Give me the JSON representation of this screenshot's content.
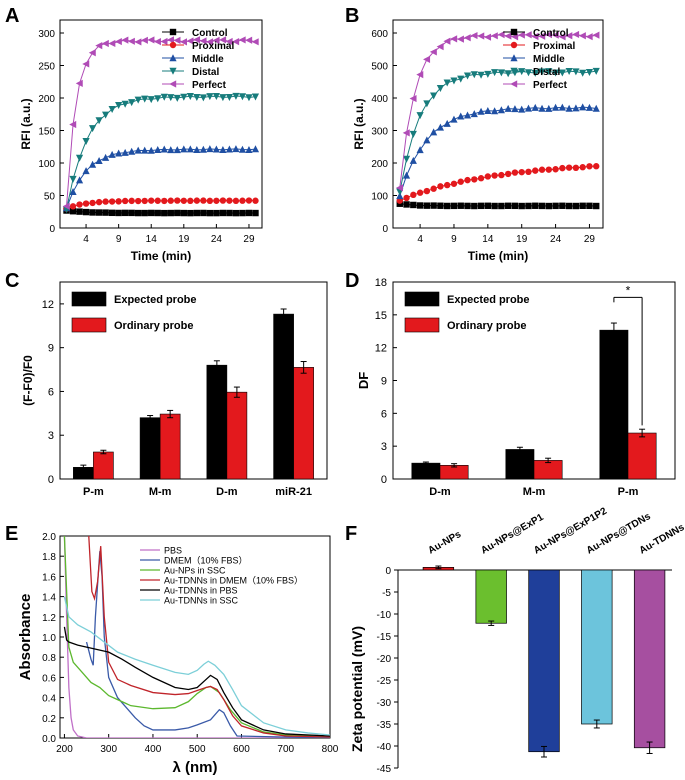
{
  "chart_data": [
    {
      "panel": "A",
      "type": "line",
      "xlabel": "Time (min)",
      "ylabel": "RFI  (a.u.)",
      "xlim": [
        0,
        31
      ],
      "ylim": [
        0,
        320
      ],
      "xticks": [
        4,
        9,
        14,
        19,
        24,
        29
      ],
      "yticks": [
        0,
        50,
        100,
        150,
        200,
        250,
        300
      ],
      "legend_position": "top-right",
      "series": [
        {
          "name": "Control",
          "color": "#000000",
          "marker": "square",
          "start": 27,
          "plateau": 23,
          "tau": 3
        },
        {
          "name": "Proximal",
          "color": "#e3191d",
          "marker": "circle",
          "start": 30,
          "plateau": 42,
          "tau": 3
        },
        {
          "name": "Middle",
          "color": "#1f4fa3",
          "marker": "triangle-up",
          "start": 30,
          "plateau": 121,
          "tau": 3
        },
        {
          "name": "Distal",
          "color": "#177c7c",
          "marker": "triangle-down",
          "start": 28,
          "plateau": 202,
          "tau": 3.2
        },
        {
          "name": "Perfect",
          "color": "#b04bb6",
          "marker": "triangle-left",
          "start": 35,
          "plateau": 288,
          "tau": 1.5
        }
      ]
    },
    {
      "panel": "B",
      "type": "line",
      "xlabel": "Time (min)",
      "ylabel": "RFI  (a.u.)",
      "xlim": [
        0,
        31
      ],
      "ylim": [
        0,
        640
      ],
      "xticks": [
        4,
        9,
        14,
        19,
        24,
        29
      ],
      "yticks": [
        0,
        100,
        200,
        300,
        400,
        500,
        600
      ],
      "legend_position": "top-right",
      "series": [
        {
          "name": "Control",
          "color": "#000000",
          "marker": "square",
          "start": 75,
          "plateau": 68,
          "tau": 2
        },
        {
          "name": "Proximal",
          "color": "#e3191d",
          "marker": "circle",
          "start": 85,
          "plateau": 205,
          "tau": 14
        },
        {
          "name": "Middle",
          "color": "#1f4fa3",
          "marker": "triangle-up",
          "start": 100,
          "plateau": 370,
          "tau": 4
        },
        {
          "name": "Distal",
          "color": "#177c7c",
          "marker": "triangle-down",
          "start": 110,
          "plateau": 480,
          "tau": 3
        },
        {
          "name": "Perfect",
          "color": "#b04bb6",
          "marker": "triangle-left",
          "start": 120,
          "plateau": 592,
          "tau": 2.2
        }
      ]
    },
    {
      "panel": "C",
      "type": "bar",
      "ylabel": "(F-F0)/F0",
      "ylim": [
        0,
        13.5
      ],
      "yticks": [
        0,
        3,
        6,
        9,
        12
      ],
      "categories": [
        "P-m",
        "M-m",
        "D-m",
        "miR-21"
      ],
      "series": [
        {
          "name": "Expected probe",
          "color": "#000000",
          "values": [
            0.8,
            4.2,
            7.8,
            11.3
          ],
          "errors": [
            0.15,
            0.15,
            0.3,
            0.35
          ]
        },
        {
          "name": "Ordinary probe",
          "color": "#e3191d",
          "values": [
            1.85,
            4.45,
            5.95,
            7.65
          ],
          "errors": [
            0.12,
            0.25,
            0.35,
            0.4
          ]
        }
      ]
    },
    {
      "panel": "D",
      "type": "bar",
      "ylabel": "DF",
      "ylim": [
        0,
        18
      ],
      "yticks": [
        0,
        3,
        6,
        9,
        12,
        15,
        18
      ],
      "categories": [
        "D-m",
        "M-m",
        "P-m"
      ],
      "significance": {
        "category": "P-m",
        "label": "*"
      },
      "series": [
        {
          "name": "Expected probe",
          "color": "#000000",
          "values": [
            1.45,
            2.7,
            13.6
          ],
          "errors": [
            0.1,
            0.2,
            0.65
          ]
        },
        {
          "name": "Ordinary probe",
          "color": "#e3191d",
          "values": [
            1.25,
            1.7,
            4.2
          ],
          "errors": [
            0.15,
            0.2,
            0.35
          ]
        }
      ]
    },
    {
      "panel": "E",
      "type": "line",
      "xlabel": "λ (nm)",
      "ylabel": "Absorbance",
      "xlim": [
        190,
        800
      ],
      "ylim": [
        0,
        2.0
      ],
      "xticks": [
        200,
        300,
        400,
        500,
        600,
        700,
        800
      ],
      "yticks": [
        0.0,
        0.2,
        0.4,
        0.6,
        0.8,
        1.0,
        1.2,
        1.4,
        1.6,
        1.8,
        2.0
      ],
      "legend_position": "top-right",
      "series": [
        {
          "name": "PBS",
          "color": "#c070c8",
          "points": [
            [
              200,
              2.0
            ],
            [
              205,
              1.2
            ],
            [
              210,
              0.5
            ],
            [
              215,
              0.2
            ],
            [
              220,
              0.08
            ],
            [
              230,
              0.02
            ],
            [
              250,
              0.0
            ],
            [
              800,
              0.0
            ]
          ]
        },
        {
          "name": "DMEM（10% FBS）",
          "color": "#3a5aa8",
          "points": [
            [
              250,
              0.95
            ],
            [
              260,
              0.78
            ],
            [
              265,
              0.72
            ],
            [
              270,
              1.2
            ],
            [
              280,
              1.85
            ],
            [
              285,
              1.6
            ],
            [
              290,
              1.0
            ],
            [
              300,
              0.6
            ],
            [
              320,
              0.4
            ],
            [
              340,
              0.3
            ],
            [
              360,
              0.2
            ],
            [
              380,
              0.12
            ],
            [
              400,
              0.08
            ],
            [
              420,
              0.08
            ],
            [
              450,
              0.08
            ],
            [
              480,
              0.1
            ],
            [
              500,
              0.13
            ],
            [
              530,
              0.18
            ],
            [
              550,
              0.28
            ],
            [
              560,
              0.25
            ],
            [
              575,
              0.12
            ],
            [
              590,
              0.02
            ],
            [
              800,
              0.0
            ]
          ]
        },
        {
          "name": "Au-NPs in SSC",
          "color": "#5cb82e",
          "points": [
            [
              200,
              2.0
            ],
            [
              205,
              1.45
            ],
            [
              210,
              0.9
            ],
            [
              220,
              0.75
            ],
            [
              240,
              0.65
            ],
            [
              260,
              0.55
            ],
            [
              280,
              0.5
            ],
            [
              300,
              0.42
            ],
            [
              320,
              0.38
            ],
            [
              350,
              0.32
            ],
            [
              400,
              0.29
            ],
            [
              450,
              0.3
            ],
            [
              480,
              0.36
            ],
            [
              500,
              0.44
            ],
            [
              520,
              0.5
            ],
            [
              530,
              0.51
            ],
            [
              550,
              0.45
            ],
            [
              575,
              0.28
            ],
            [
              600,
              0.15
            ],
            [
              650,
              0.06
            ],
            [
              700,
              0.03
            ],
            [
              800,
              0.01
            ]
          ]
        },
        {
          "name": "Au-TDNNs in DMEM（10% FBS）",
          "color": "#c0242a",
          "points": [
            [
              255,
              2.0
            ],
            [
              262,
              1.45
            ],
            [
              268,
              1.38
            ],
            [
              275,
              1.55
            ],
            [
              282,
              1.9
            ],
            [
              290,
              1.2
            ],
            [
              300,
              0.75
            ],
            [
              320,
              0.58
            ],
            [
              350,
              0.52
            ],
            [
              400,
              0.45
            ],
            [
              450,
              0.43
            ],
            [
              480,
              0.44
            ],
            [
              500,
              0.47
            ],
            [
              520,
              0.5
            ],
            [
              530,
              0.51
            ],
            [
              545,
              0.48
            ],
            [
              560,
              0.38
            ],
            [
              580,
              0.22
            ],
            [
              600,
              0.12
            ],
            [
              650,
              0.05
            ],
            [
              700,
              0.02
            ],
            [
              800,
              0.01
            ]
          ]
        },
        {
          "name": "Au-TDNNs in PBS",
          "color": "#000000",
          "points": [
            [
              200,
              1.1
            ],
            [
              205,
              0.97
            ],
            [
              210,
              0.95
            ],
            [
              230,
              0.92
            ],
            [
              250,
              0.9
            ],
            [
              270,
              0.88
            ],
            [
              300,
              0.85
            ],
            [
              330,
              0.78
            ],
            [
              360,
              0.7
            ],
            [
              400,
              0.6
            ],
            [
              450,
              0.5
            ],
            [
              480,
              0.48
            ],
            [
              500,
              0.5
            ],
            [
              520,
              0.58
            ],
            [
              530,
              0.62
            ],
            [
              545,
              0.58
            ],
            [
              560,
              0.45
            ],
            [
              580,
              0.3
            ],
            [
              600,
              0.18
            ],
            [
              650,
              0.08
            ],
            [
              700,
              0.04
            ],
            [
              800,
              0.02
            ]
          ]
        },
        {
          "name": "Au-TDNNs in SSC",
          "color": "#7ccfd8",
          "points": [
            [
              200,
              1.4
            ],
            [
              210,
              1.2
            ],
            [
              230,
              1.12
            ],
            [
              260,
              1.05
            ],
            [
              290,
              0.95
            ],
            [
              320,
              0.85
            ],
            [
              360,
              0.78
            ],
            [
              400,
              0.72
            ],
            [
              450,
              0.65
            ],
            [
              480,
              0.63
            ],
            [
              500,
              0.67
            ],
            [
              515,
              0.73
            ],
            [
              525,
              0.76
            ],
            [
              540,
              0.72
            ],
            [
              560,
              0.63
            ],
            [
              580,
              0.48
            ],
            [
              600,
              0.32
            ],
            [
              650,
              0.15
            ],
            [
              700,
              0.08
            ],
            [
              750,
              0.05
            ],
            [
              800,
              0.03
            ]
          ]
        }
      ]
    },
    {
      "panel": "F",
      "type": "bar",
      "ylabel": "Zeta potential (mV)",
      "ylim": [
        -45,
        0
      ],
      "yticks": [
        0,
        -5,
        -10,
        -15,
        -20,
        -25,
        -30,
        -35,
        -40,
        -45
      ],
      "categories": [
        "Au-NPs",
        "Au-NPs@ExP1",
        "Au-NPs@ExP1P2",
        "Au-NPs@TDNs",
        "Au-TDNNs"
      ],
      "series": [
        {
          "name": "Zeta potential",
          "values": [
            0.6,
            -12.1,
            -41.3,
            -35.0,
            -40.4
          ],
          "errors": [
            0.3,
            0.5,
            1.2,
            0.9,
            1.3
          ],
          "colors": [
            "#e3191d",
            "#6bbf2e",
            "#1f3f9a",
            "#6cc4dc",
            "#a64fa0"
          ]
        }
      ]
    }
  ],
  "panel_labels": [
    "A",
    "B",
    "C",
    "D",
    "E",
    "F"
  ]
}
